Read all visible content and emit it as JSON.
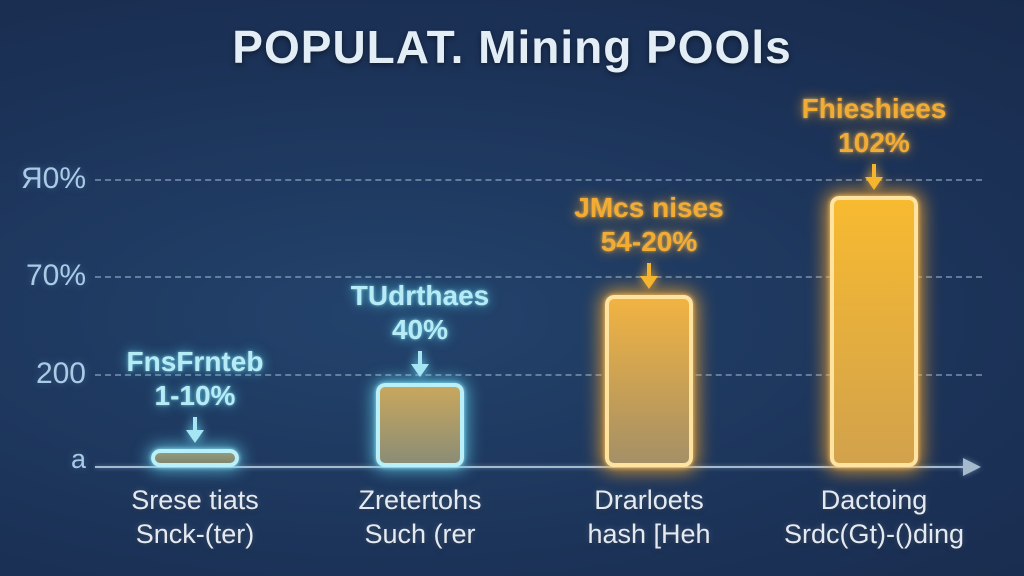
{
  "title": "POPULAT. Mining POOls",
  "colors": {
    "background_navy": "#1b3156",
    "cyan_accent": "#a5e6f2",
    "orange_accent": "#f3ac33",
    "axis": "#a6bace",
    "title_text": "#e2edf5"
  },
  "y_axis": {
    "tick_top": "Я0%",
    "tick_upper": "70%",
    "tick_mid": "200",
    "tick_origin": "a"
  },
  "bars": [
    {
      "annotation_line1": "FnsFrnteb",
      "annotation_line2": "1-10%",
      "category_line1": "Srese tiats",
      "category_line2": "Snck-(ter)",
      "theme": "cyan"
    },
    {
      "annotation_line1": "TUdrthaes",
      "annotation_line2": "40%",
      "category_line1": "Zretertohs",
      "category_line2": "Such (rer",
      "theme": "cyan"
    },
    {
      "annotation_line1": "JMcs nises",
      "annotation_line2": "54-20%",
      "category_line1": "Drarloets",
      "category_line2": "hash [Heh",
      "theme": "orange"
    },
    {
      "annotation_line1": "Fhieshiees",
      "annotation_line2": "102%",
      "category_line1": "Dactoing",
      "category_line2": "Srdc(Gt)-()ding",
      "theme": "orange"
    }
  ],
  "chart_data": {
    "type": "bar",
    "title": "POPULAT. Mining POOls",
    "categories": [
      "Srese tiats Snck-(ter)",
      "Zretertohs Such (rer",
      "Drarloets hash [Heh",
      "Dactoing Srdc(Gt)-()ding"
    ],
    "values_pct_of_axis": [
      6.3,
      29.3,
      59.9,
      94.4
    ],
    "bar_annotations": [
      "FnsFrnteb 1-10%",
      "TUdrthaes 40%",
      "JMcs nises 54-20%",
      "Fhieshiees 102%"
    ],
    "y_tick_labels_bottom_to_top": [
      "a",
      "200",
      "70%",
      "Я0%"
    ],
    "xlabel": "",
    "ylabel": "",
    "grid": "dashed horizontal lines at each y tick",
    "legend": "none",
    "series_colors": [
      "cyan-glow olive fill",
      "cyan-glow khaki fill",
      "orange-glow gold fill",
      "orange-glow bright gold fill"
    ]
  }
}
